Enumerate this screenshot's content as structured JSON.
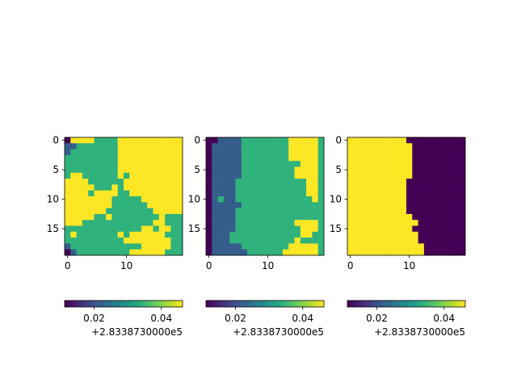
{
  "chart_data": [
    {
      "type": "heatmap",
      "title": "",
      "colormap": "viridis",
      "rows": 20,
      "cols": 20,
      "x_ticks": [
        0,
        10
      ],
      "y_ticks": [
        0,
        5,
        10,
        15
      ],
      "x_tick_labels": [
        "0",
        "10"
      ],
      "y_tick_labels": [
        "0",
        "5",
        "10",
        "15"
      ],
      "value_levels": {
        "0": 0.0,
        "1": 0.3,
        "2": 0.65,
        "3": 1.0
      },
      "grid": [
        "03333222233333333333",
        "11222222233333333333",
        "12222222233333333333",
        "22222222233333333333",
        "22222222233333333333",
        "22222222233333333333",
        "23322222232333333333",
        "33332222223333333333",
        "33333222323333333333",
        "33332333322333333333",
        "33333333222223333333",
        "33333333222222333333",
        "33333332222222233333",
        "33333223222222223222",
        "33322222222222233222",
        "22222222222223323322",
        "23222222232333333222",
        "22222222223333333322",
        "12222222222223333322",
        "01222222222333333222"
      ],
      "colorbar": {
        "orientation": "horizontal",
        "tick_labels": [
          "0.02",
          "0.04"
        ],
        "offset_label": "+2.8338730000e5"
      }
    },
    {
      "type": "heatmap",
      "title": "",
      "colormap": "viridis",
      "rows": 20,
      "cols": 20,
      "x_ticks": [
        0,
        10
      ],
      "y_ticks": [
        0,
        5,
        10,
        15
      ],
      "x_tick_labels": [
        "0",
        "10"
      ],
      "y_tick_labels": [
        "0",
        "5",
        "10",
        "15"
      ],
      "value_levels": {
        "0": 0.0,
        "1": 0.3,
        "2": 0.65,
        "3": 1.0
      },
      "grid": [
        "00111122222222333332",
        "01111122222222333332",
        "01111122222222333332",
        "01111122222222333332",
        "01111122222222223332",
        "01111122222222233332",
        "01111122222222233332",
        "01111222222222222332",
        "01111222222222222332",
        "01111222222222222332",
        "01211222222222222232",
        "01111122222222222222",
        "01111222222222222222",
        "01111222222222222222",
        "01111222222222233332",
        "01111222222222223332",
        "01112222222222223322",
        "01112222222222232222",
        "01111122222222333332",
        "01111112222223333332"
      ],
      "colorbar": {
        "orientation": "horizontal",
        "tick_labels": [
          "0.02",
          "0.04"
        ],
        "offset_label": "+2.8338730000e5"
      }
    },
    {
      "type": "heatmap",
      "title": "",
      "colormap": "viridis",
      "rows": 20,
      "cols": 20,
      "x_ticks": [
        0,
        10
      ],
      "y_ticks": [
        0,
        5,
        10,
        15
      ],
      "x_tick_labels": [
        "0",
        "10"
      ],
      "y_tick_labels": [
        "0",
        "5",
        "10",
        "15"
      ],
      "value_levels": {
        "0": 0.0,
        "1": 0.3,
        "2": 0.65,
        "3": 1.0
      },
      "grid": [
        "33333333330000000000",
        "33333333333000000000",
        "33333333333000000000",
        "33333333333000000000",
        "33333333333000000000",
        "33333333333000000000",
        "33333333333000000000",
        "33333333330000000000",
        "33333333330000000000",
        "33333333330000000000",
        "33333333330000000000",
        "33333333330000000000",
        "33333333330000000000",
        "33333333333000000000",
        "33333333333300000000",
        "33333333333000000000",
        "33333333333300000000",
        "33333333333300000000",
        "33333333333330000000",
        "33333333333330000000"
      ],
      "colorbar": {
        "orientation": "horizontal",
        "tick_labels": [
          "0.02",
          "0.04"
        ],
        "offset_label": "+2.8338730000e5"
      }
    }
  ]
}
